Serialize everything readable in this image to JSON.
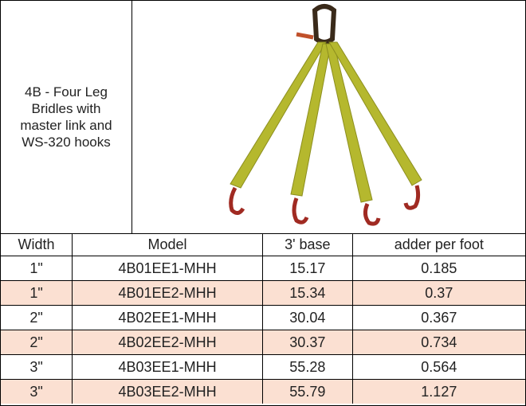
{
  "header": {
    "title": "4B - Four Leg Bridles with master link and WS-320 hooks"
  },
  "table": {
    "columns": [
      "Width",
      "Model",
      "3' base",
      "adder per foot"
    ],
    "rows": [
      [
        "1\"",
        "4B01EE1-MHH",
        "15.17",
        "0.185"
      ],
      [
        "1\"",
        "4B01EE2-MHH",
        "15.34",
        "0.37"
      ],
      [
        "2\"",
        "4B02EE1-MHH",
        "30.04",
        "0.367"
      ],
      [
        "2\"",
        "4B02EE2-MHH",
        "30.37",
        "0.734"
      ],
      [
        "3\"",
        "4B03EE1-MHH",
        "55.28",
        "0.564"
      ],
      [
        "3\"",
        "4B03EE2-MHH",
        "55.79",
        "1.127"
      ]
    ]
  }
}
